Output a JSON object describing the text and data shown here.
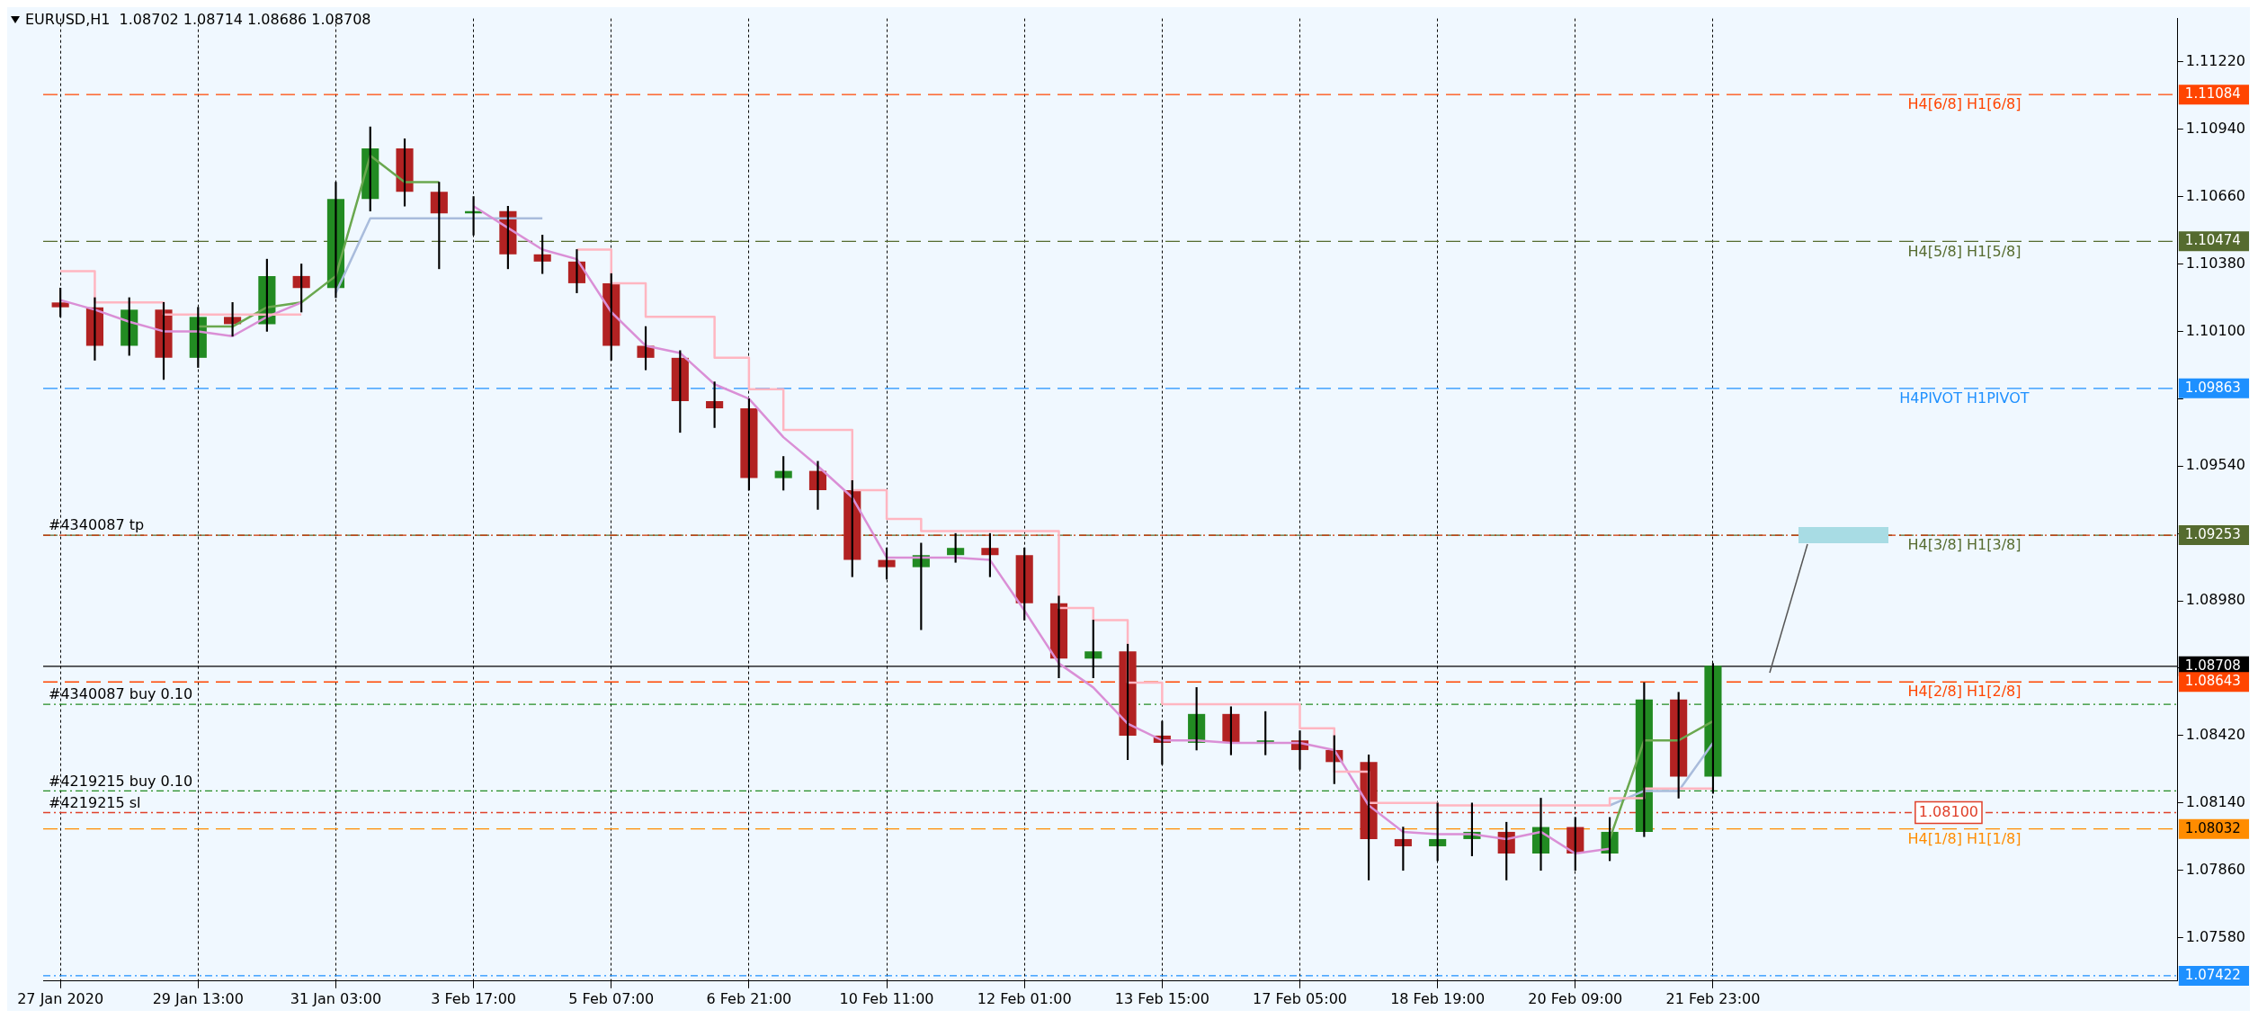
{
  "chart_data": {
    "type": "candlestick",
    "title": "EURUSD,H1  1.08702 1.08714 1.08686 1.08708",
    "categories": [
      "27 Jan 2020",
      null,
      null,
      null,
      "29 Jan 13:00",
      null,
      null,
      null,
      "31 Jan 03:00",
      null,
      null,
      null,
      "3 Feb 17:00",
      null,
      null,
      null,
      "5 Feb 07:00",
      null,
      null,
      null,
      "6 Feb 21:00",
      null,
      null,
      null,
      "10 Feb 11:00",
      null,
      null,
      null,
      "12 Feb 01:00",
      null,
      null,
      null,
      "13 Feb 15:00",
      null,
      null,
      null,
      "17 Feb 05:00",
      null,
      null,
      null,
      "18 Feb 19:00",
      null,
      null,
      null,
      "20 Feb 09:00",
      null,
      null,
      null,
      "21 Feb 23:00",
      null,
      null,
      null,
      null,
      null,
      null,
      null,
      null,
      null,
      null,
      null,
      null,
      null
    ],
    "ohlc": [
      [
        1.1022,
        1.1028,
        1.1016,
        1.102
      ],
      [
        1.102,
        1.1024,
        1.0998,
        1.1004
      ],
      [
        1.1004,
        1.1024,
        1.1,
        1.1019
      ],
      [
        1.1019,
        1.1022,
        1.099,
        1.0999
      ],
      [
        1.0999,
        1.102,
        1.0995,
        1.1016
      ],
      [
        1.1016,
        1.1022,
        1.1008,
        1.1013
      ],
      [
        1.1013,
        1.104,
        1.101,
        1.1033
      ],
      [
        1.1033,
        1.1038,
        1.1018,
        1.1028
      ],
      [
        1.1028,
        1.1072,
        1.1024,
        1.1065
      ],
      [
        1.1065,
        1.1095,
        1.106,
        1.1086
      ],
      [
        1.1086,
        1.109,
        1.1062,
        1.1068
      ],
      [
        1.1068,
        1.1072,
        1.1036,
        1.1059
      ],
      [
        1.1059,
        1.1066,
        1.105,
        1.106
      ],
      [
        1.106,
        1.1062,
        1.1036,
        1.1042
      ],
      [
        1.1042,
        1.105,
        1.1034,
        1.1039
      ],
      [
        1.1039,
        1.1044,
        1.1026,
        1.103
      ],
      [
        1.103,
        1.1034,
        1.0998,
        1.1004
      ],
      [
        1.1004,
        1.1012,
        1.0994,
        1.0999
      ],
      [
        1.0999,
        1.1002,
        1.0968,
        1.0981
      ],
      [
        1.0981,
        1.0989,
        1.097,
        1.0978
      ],
      [
        1.0978,
        1.0982,
        1.0944,
        1.0949
      ],
      [
        1.0949,
        1.0958,
        1.0944,
        1.0952
      ],
      [
        1.0952,
        1.0956,
        1.0936,
        1.0944
      ],
      [
        1.0944,
        1.0948,
        1.0908,
        1.0915
      ],
      [
        1.0915,
        1.092,
        1.0907,
        1.0912
      ],
      [
        1.0912,
        1.0922,
        1.0886,
        1.0917
      ],
      [
        1.0917,
        1.0926,
        1.0914,
        1.092
      ],
      [
        1.092,
        1.0926,
        1.0908,
        1.0917
      ],
      [
        1.0917,
        1.092,
        1.089,
        1.0897
      ],
      [
        1.0897,
        1.09,
        1.0866,
        1.0874
      ],
      [
        1.0874,
        1.089,
        1.0866,
        1.0877
      ],
      [
        1.0877,
        1.088,
        1.0832,
        1.0842
      ],
      [
        1.0842,
        1.0848,
        1.083,
        1.0839
      ],
      [
        1.0839,
        1.0862,
        1.0836,
        1.0851
      ],
      [
        1.0851,
        1.0854,
        1.0834,
        1.0839
      ],
      [
        1.0839,
        1.0852,
        1.0834,
        1.084
      ],
      [
        1.084,
        1.0844,
        1.0828,
        1.0836
      ],
      [
        1.0836,
        1.0842,
        1.0822,
        1.0831
      ],
      [
        1.0831,
        1.0834,
        1.0782,
        1.0799
      ],
      [
        1.0799,
        1.0804,
        1.0786,
        1.0796
      ],
      [
        1.0796,
        1.0814,
        1.079,
        1.0799
      ],
      [
        1.0799,
        1.0814,
        1.0792,
        1.0802
      ],
      [
        1.0802,
        1.0806,
        1.0782,
        1.0793
      ],
      [
        1.0793,
        1.0816,
        1.0786,
        1.0804
      ],
      [
        1.0804,
        1.0808,
        1.0786,
        1.0793
      ],
      [
        1.0793,
        1.0808,
        1.079,
        1.0802
      ],
      [
        1.0802,
        1.0864,
        1.08,
        1.0857
      ],
      [
        1.0857,
        1.086,
        1.0816,
        1.0825
      ],
      [
        1.0825,
        1.0872,
        1.0818,
        1.0871
      ],
      null,
      null,
      null,
      null,
      null,
      null,
      null,
      null,
      null,
      null,
      null,
      null,
      null
    ],
    "colors": [
      "#b22222",
      "#b22222",
      "#228b22",
      "#b22222",
      "#228b22",
      "#b22222",
      "#228b22",
      "#b22222",
      "#228b22",
      "#228b22",
      "#b22222",
      "#b22222",
      "#228b22",
      "#b22222",
      "#b22222",
      "#b22222",
      "#b22222",
      "#b22222",
      "#b22222",
      "#b22222",
      "#b22222",
      "#228b22",
      "#b22222",
      "#b22222",
      "#b22222",
      "#228b22",
      "#228b22",
      "#b22222",
      "#b22222",
      "#b22222",
      "#228b22",
      "#b22222",
      "#b22222",
      "#228b22",
      "#b22222",
      "#228b22",
      "#b22222",
      "#b22222",
      "#b22222",
      "#b22222",
      "#228b22",
      "#228b22",
      "#b22222",
      "#228b22",
      "#b22222",
      "#228b22",
      "#228b22",
      "#b22222",
      "#228b22",
      null,
      null,
      null,
      null,
      null,
      null,
      null,
      null,
      null,
      null,
      null,
      null,
      null
    ],
    "series": [
      {
        "type": "step",
        "color": "#ffb6c1",
        "values": [
          1.1035,
          1.1022,
          1.1022,
          1.1017,
          1.1017,
          1.1017,
          1.1017,
          1.1017,
          null,
          null,
          null,
          null,
          null,
          null,
          null,
          1.1044,
          1.103,
          1.1016,
          1.1016,
          1.0999,
          1.0986,
          1.0969,
          1.0969,
          1.0944,
          1.0932,
          1.0927,
          1.0927,
          1.0927,
          1.0927,
          1.0895,
          1.089,
          1.0864,
          1.0855,
          1.0855,
          1.0855,
          1.0855,
          1.0845,
          1.0827,
          1.0814,
          1.0814,
          1.0813,
          1.0813,
          1.0813,
          1.0813,
          1.0813,
          1.0816,
          1.082,
          1.082,
          1.082,
          null,
          null,
          null,
          null,
          null,
          null,
          null,
          null,
          null,
          null,
          null,
          null,
          null
        ]
      },
      {
        "type": "line",
        "color": "#da8fd6",
        "values": [
          1.1023,
          1.1019,
          1.1014,
          1.101,
          1.101,
          1.1008,
          1.1016,
          1.1022,
          null,
          null,
          null,
          null,
          1.1062,
          1.1053,
          1.1044,
          1.104,
          1.1018,
          1.1004,
          1.1001,
          1.0988,
          1.0982,
          1.0966,
          1.0954,
          1.0941,
          1.0916,
          1.0916,
          1.0916,
          1.0915,
          1.0894,
          1.0872,
          1.0862,
          1.0847,
          1.084,
          1.084,
          1.0839,
          1.0839,
          1.0839,
          1.0836,
          1.0813,
          1.0802,
          1.0801,
          1.0801,
          1.0799,
          1.0802,
          1.0793,
          1.0795,
          null,
          null,
          null,
          null,
          null,
          null,
          null,
          null,
          null,
          null,
          null,
          null,
          null,
          null,
          null,
          null
        ]
      },
      {
        "type": "line",
        "color": "#6aa84f",
        "values": [
          null,
          null,
          null,
          null,
          1.1012,
          1.1012,
          1.102,
          1.1022,
          1.1033,
          1.1083,
          1.1072,
          1.1072,
          null,
          null,
          null,
          null,
          null,
          null,
          null,
          null,
          null,
          null,
          null,
          null,
          null,
          null,
          null,
          null,
          null,
          null,
          null,
          null,
          null,
          null,
          null,
          null,
          null,
          null,
          null,
          null,
          null,
          null,
          null,
          null,
          null,
          1.0799,
          1.084,
          1.084,
          1.0848,
          null,
          null,
          null,
          null,
          null,
          null,
          null,
          null,
          null,
          null,
          null,
          null,
          null
        ]
      },
      {
        "type": "line",
        "color": "#a9bcdc",
        "values": [
          null,
          null,
          null,
          null,
          null,
          null,
          null,
          null,
          1.1026,
          1.1057,
          1.1057,
          1.1057,
          1.1057,
          1.1057,
          1.1057,
          null,
          null,
          null,
          null,
          null,
          null,
          null,
          null,
          null,
          null,
          null,
          null,
          null,
          null,
          null,
          null,
          null,
          null,
          null,
          null,
          null,
          null,
          null,
          null,
          null,
          null,
          null,
          null,
          null,
          null,
          1.0813,
          1.0819,
          1.0819,
          1.0839,
          null,
          null,
          null,
          null,
          null,
          null,
          null,
          null,
          null,
          null,
          null,
          null,
          null
        ]
      }
    ],
    "ylim": [
      1.074,
      1.114
    ],
    "yticks": [
      {
        "value": 1.1122,
        "label": "1.11220"
      },
      {
        "value": 1.1094,
        "label": "1.10940"
      },
      {
        "value": 1.1066,
        "label": "1.10660"
      },
      {
        "value": 1.1038,
        "label": "1.10380"
      },
      {
        "value": 1.101,
        "label": "1.10100"
      },
      {
        "value": 1.0982,
        "label": null
      },
      {
        "value": 1.0954,
        "label": "1.09540"
      },
      {
        "value": 1.0926,
        "label": null
      },
      {
        "value": 1.0898,
        "label": "1.08980"
      },
      {
        "value": 1.087,
        "label": null
      },
      {
        "value": 1.0842,
        "label": "1.08420"
      },
      {
        "value": 1.0814,
        "label": "1.08140"
      },
      {
        "value": 1.0786,
        "label": "1.07860"
      },
      {
        "value": 1.0758,
        "label": "1.07580"
      }
    ],
    "grid": "x",
    "ref_lines": [
      {
        "axis": "y",
        "value": 1.11084,
        "label": "H4[6/8] H1[6/8]",
        "color": "#ff4500",
        "line_style": "dashed"
      },
      {
        "axis": "y",
        "value": 1.10474,
        "label": "H4[5/8] H1[5/8]",
        "color": "#556b2f",
        "line_style": "dashed"
      },
      {
        "axis": "y",
        "value": 1.09863,
        "label": "H4PIVOT H1PIVOT",
        "color": "#1e90ff",
        "line_style": "dashed"
      },
      {
        "axis": "y",
        "value": 1.09253,
        "label": "H4[3/8] H1[3/8]",
        "color": "#556b2f",
        "line_style": "dashed"
      },
      {
        "axis": "y",
        "value": 1.09253,
        "label": "#4340087 tp",
        "color": "#cc3300",
        "line_style": "dotted"
      },
      {
        "axis": "y",
        "value": 1.08708,
        "color": "#000000",
        "line_style": "solid"
      },
      {
        "axis": "y",
        "value": 1.08643,
        "label": "H4[2/8] H1[2/8]",
        "color": "#ff4500",
        "line_style": "dashed"
      },
      {
        "axis": "y",
        "value": 1.0855,
        "label": "#4340087 buy 0.10",
        "color": "#228b22",
        "line_style": "dotted"
      },
      {
        "axis": "y",
        "value": 1.0819,
        "label": "#4219215 buy 0.10",
        "color": "#228b22",
        "line_style": "dotted"
      },
      {
        "axis": "y",
        "value": 1.081,
        "label": "#4219215 sl",
        "color": "#e0402a",
        "line_style": "dotted"
      },
      {
        "axis": "y",
        "value": 1.08032,
        "label": "H4[1/8] H1[1/8]",
        "color": "#ff8c00",
        "line_style": "dashed"
      },
      {
        "axis": "y",
        "value": 1.07422,
        "color": "#1e90ff",
        "line_style": "dotted"
      }
    ],
    "annotations": [
      "1.11084",
      "1.10474",
      "1.09863",
      "1.09253",
      "1.08708",
      "1.08643",
      "1.08032",
      "1.07422",
      "1.08100"
    ]
  }
}
